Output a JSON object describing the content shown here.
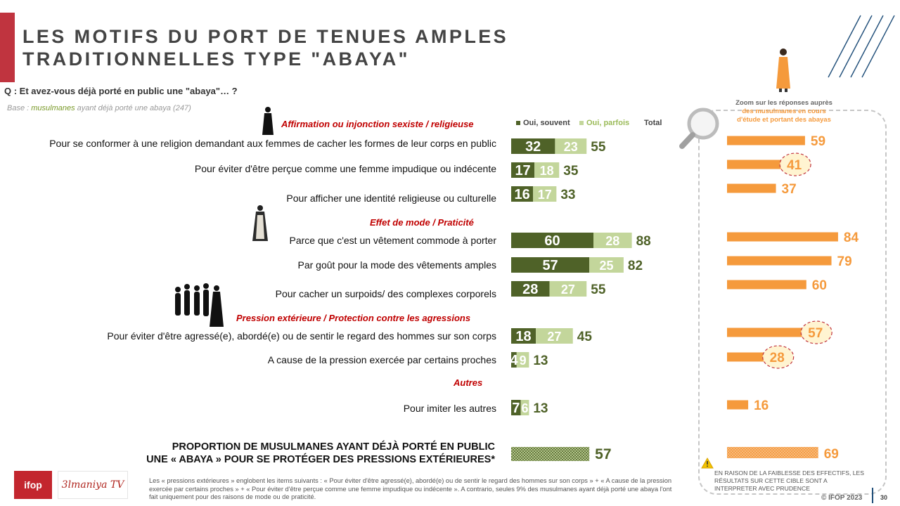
{
  "title": {
    "line1": "LES MOTIFS DU PORT DE TENUES AMPLES",
    "line2": "TRADITIONNELLES TYPE \"ABAYA\""
  },
  "question": "Q : Et avez-vous déjà porté en public une \"abaya\"… ?",
  "base": {
    "prefix": "Base : ",
    "highlight": "musulmanes",
    "suffix": " ayant déjà porté une abaya  (247)"
  },
  "legend": {
    "often": "Oui, souvent",
    "sometimes": "Oui, parfois",
    "total": "Total"
  },
  "categories": {
    "c1": "Affirmation ou injonction sexiste / religieuse",
    "c2": "Effet de mode / Praticité",
    "c3": "Pression extérieure / Protection contre les agressions",
    "c4": "Autres"
  },
  "zoom": {
    "line1": "Zoom sur les réponses auprès",
    "line2": "des musulmanes en cours",
    "line3": "d'étude et portant des abayas"
  },
  "bottom": {
    "line1": "PROPORTION DE MUSULMANES AYANT DÉJÀ PORTÉ EN PUBLIC",
    "line2": "UNE « ABAYA » POUR SE PROTÉGER DES PRESSIONS EXTÉRIEURES*"
  },
  "footnote": "Les « pressions extérieures » englobent les items suivants : « Pour éviter d'être agressé(e), abordé(e) ou de sentir le regard des hommes sur son corps » + « A cause de la pression exercée par certains proches » + « Pour éviter d'être perçue comme une femme impudique ou indécente ». A contrario, seules 9% des musulmanes ayant déjà porté une abaya l'ont fait uniquement pour des raisons de mode ou de praticité.",
  "warning": "EN RAISON DE LA FAIBLESSE DES EFFECTIFS, LES RÉSULTATS SUR CETTE CIBLE SONT A INTERPRETER AVEC  PRUDENCE",
  "copyright": "© IFOP 2023",
  "page_number": "30",
  "logos": {
    "ifop": "ifop",
    "tv": "3lmaniya TV"
  },
  "colors": {
    "often": "#4f6228",
    "sometimes": "#c3d69b",
    "total": "#4f6228",
    "zoom": "#f59a3c",
    "title_bar": "#c0343f",
    "category": "#c00000"
  },
  "chart_data": [
    {
      "type": "bar",
      "orientation": "horizontal",
      "stacked": true,
      "categories": [
        "Pour se conformer à une religion demandant aux femmes de cacher les formes de leur corps en public",
        "Pour éviter d'être perçue comme une femme impudique ou indécente",
        "Pour afficher une identité religieuse ou culturelle",
        "Parce que c'est un vêtement commode à porter",
        "Par goût pour la mode des vêtements amples",
        "Pour cacher un surpoids/ des complexes corporels",
        "Pour éviter d'être agressé(e), abordé(e) ou de sentir le regard des hommes sur son corps",
        "A cause de la pression exercée par certains proches",
        "Pour imiter les autres"
      ],
      "series": [
        {
          "name": "Oui, souvent",
          "values": [
            32,
            17,
            16,
            60,
            57,
            28,
            18,
            4,
            7
          ]
        },
        {
          "name": "Oui, parfois",
          "values": [
            23,
            18,
            17,
            28,
            25,
            27,
            27,
            9,
            6
          ]
        }
      ],
      "totals": [
        55,
        35,
        33,
        88,
        82,
        55,
        45,
        13,
        13
      ],
      "summary_value": 57,
      "xlim": [
        0,
        100
      ]
    },
    {
      "type": "bar",
      "orientation": "horizontal",
      "values": [
        59,
        41,
        37,
        84,
        79,
        60,
        57,
        28,
        16
      ],
      "highlighted": [
        41,
        57,
        28
      ],
      "summary_value": 69,
      "xlim": [
        0,
        100
      ]
    }
  ]
}
